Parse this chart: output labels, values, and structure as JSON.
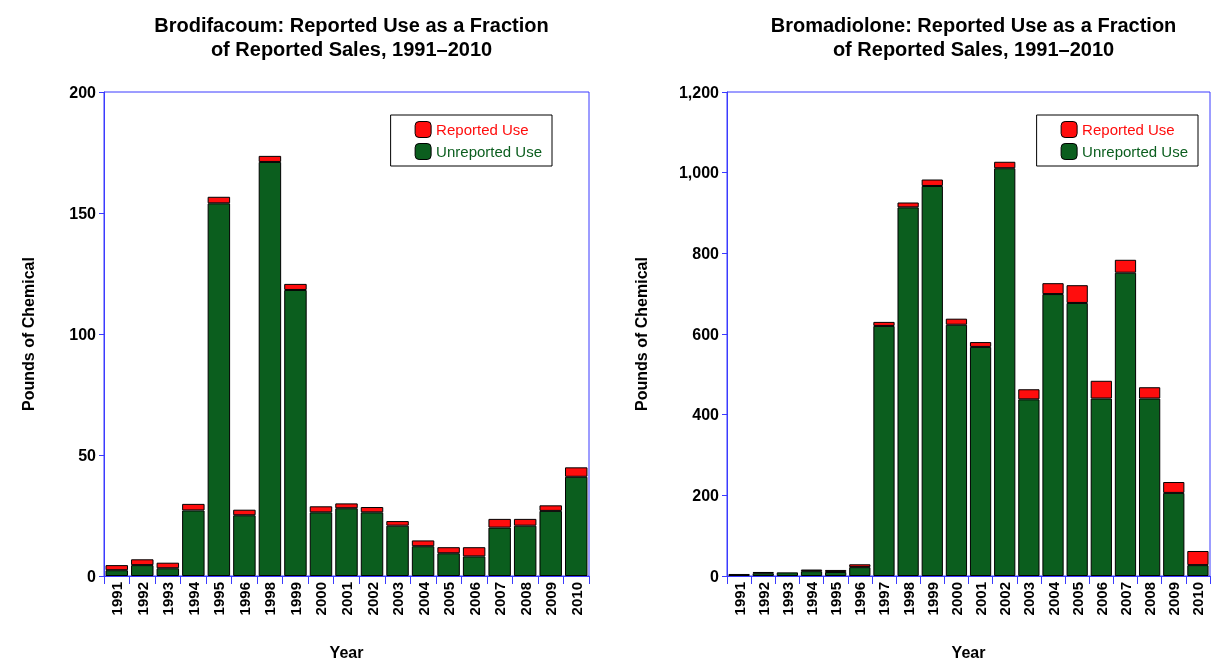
{
  "chart_data": [
    {
      "type": "bar",
      "title": "Brodifacoum: Reported Use as a Fraction\nof Reported Sales, 1991–2010",
      "xlabel": "Year",
      "ylabel": "Pounds of Chemical",
      "categories": [
        "1991",
        "1992",
        "1993",
        "1994",
        "1995",
        "1996",
        "1998",
        "1999",
        "2000",
        "2001",
        "2002",
        "2003",
        "2004",
        "2005",
        "2006",
        "2007",
        "2008",
        "2009",
        "2010"
      ],
      "stacked": true,
      "legend": "top right",
      "ylim": [
        0,
        200
      ],
      "yticks": [
        0,
        50,
        100,
        150,
        200
      ],
      "series": [
        {
          "name": "Unreported Use",
          "color": "#0b5e1e",
          "values": [
            2.4,
            4.5,
            3.2,
            27.1,
            154,
            25.1,
            171.1,
            118.2,
            26.3,
            28,
            26.3,
            20.8,
            12.3,
            9.4,
            8.1,
            20,
            20.8,
            26.9,
            41
          ]
        },
        {
          "name": "Reported Use",
          "color": "#ff0d0d",
          "values": [
            2.1,
            2.4,
            2.3,
            2.7,
            2.7,
            2.3,
            2.5,
            2.5,
            2.5,
            2,
            2.2,
            1.9,
            2.4,
            2.5,
            3.8,
            3.6,
            2.8,
            2.3,
            3.9
          ]
        }
      ]
    },
    {
      "type": "bar",
      "title": "Bromadiolone: Reported Use as a Fraction\nof Reported Sales, 1991–2010",
      "xlabel": "Year",
      "ylabel": "Pounds of Chemical",
      "categories": [
        "1991",
        "1992",
        "1993",
        "1994",
        "1995",
        "1996",
        "1997",
        "1998",
        "1999",
        "2000",
        "2001",
        "2002",
        "2003",
        "2004",
        "2005",
        "2006",
        "2007",
        "2008",
        "2009",
        "2010"
      ],
      "stacked": true,
      "legend": "top right",
      "ylim": [
        0,
        1200
      ],
      "yticks": [
        0,
        200,
        400,
        600,
        800,
        {
          "value": 1000,
          "label": "1,000"
        },
        {
          "value": 1200,
          "label": "1,200"
        }
      ],
      "series": [
        {
          "name": "Unreported Use",
          "color": "#0b5e1e",
          "values": [
            5,
            7,
            9,
            12,
            10,
            22,
            620,
            914,
            967,
            623,
            568,
            1011,
            438,
            699,
            677,
            440,
            752,
            440,
            206,
            27
          ]
        },
        {
          "name": "Reported Use",
          "color": "#ff0d0d",
          "values": [
            null,
            3,
            null,
            4,
            5,
            7,
            10,
            12,
            16,
            15,
            12,
            16,
            25,
            27,
            44,
            44,
            32,
            28,
            27,
            35
          ]
        }
      ]
    }
  ]
}
